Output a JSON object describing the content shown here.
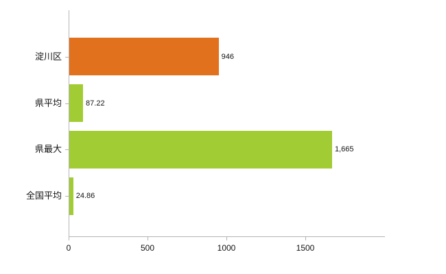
{
  "chart_data": {
    "type": "bar",
    "orientation": "horizontal",
    "title": "",
    "xlabel": "",
    "ylabel": "",
    "categories": [
      "淀川区",
      "県平均",
      "県最大",
      "全国平均"
    ],
    "values": [
      946,
      87.22,
      1665,
      24.86
    ],
    "value_labels": [
      "946",
      "87.22",
      "1,665",
      "24.86"
    ],
    "bar_colors": [
      "#e2711d",
      "#a2cc34",
      "#a2cc34",
      "#a2cc34"
    ],
    "xlim": [
      0,
      2000
    ],
    "xticks": [
      0,
      500,
      1000,
      1500
    ],
    "xtick_labels": [
      "0",
      "500",
      "1000",
      "1500"
    ],
    "grid": false,
    "legend": false,
    "axis_color": "#b3b3b3",
    "background_color": "#ffffff"
  }
}
